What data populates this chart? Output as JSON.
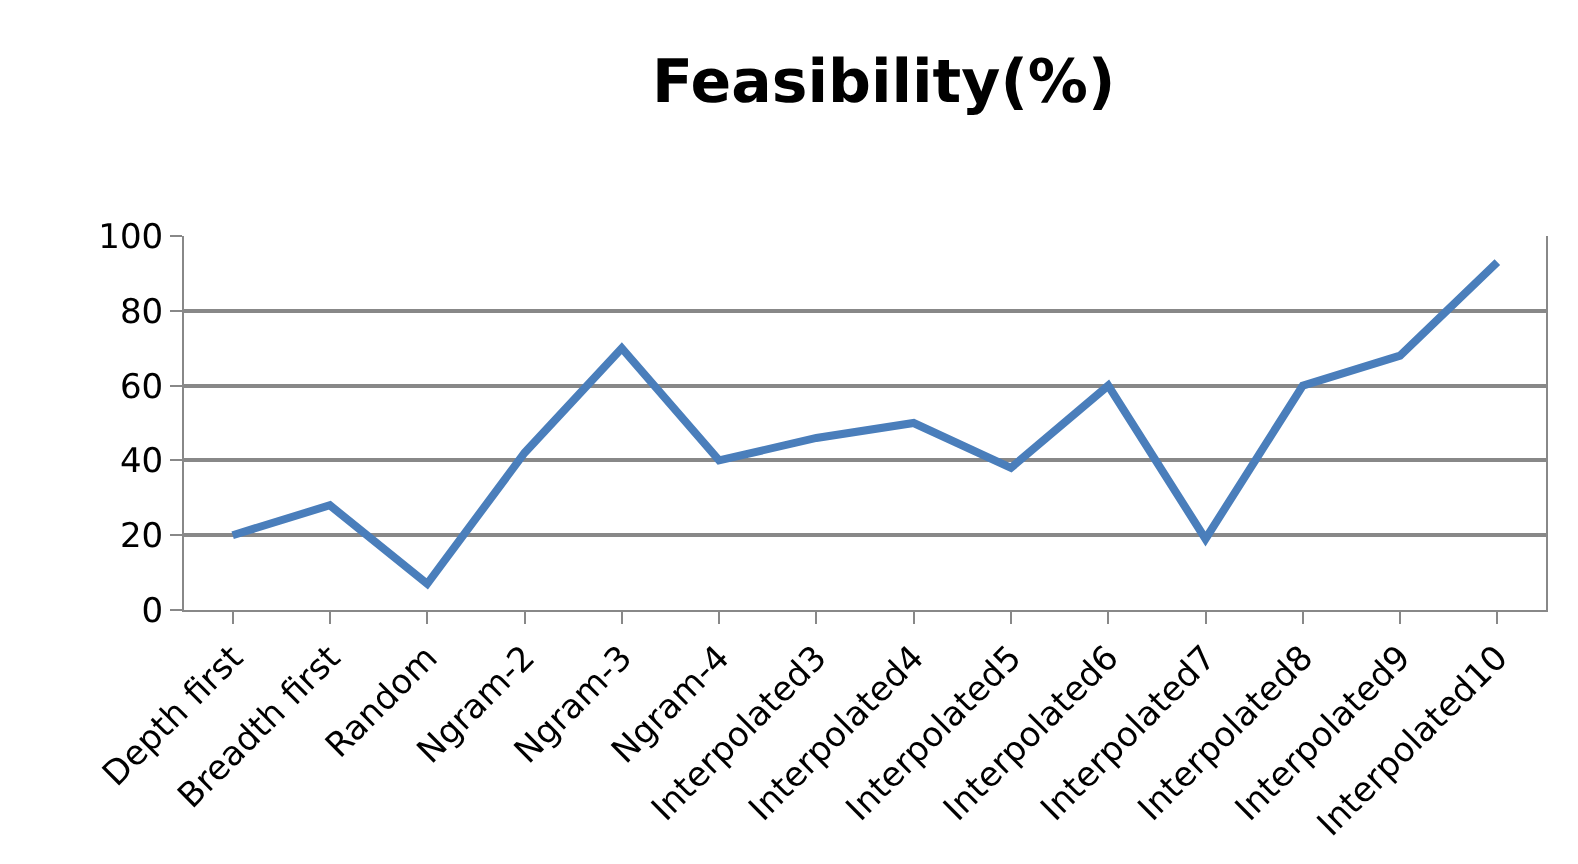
{
  "chart_data": {
    "type": "line",
    "title": "Feasibility(%)",
    "categories": [
      "Depth first",
      "Breadth first",
      "Random",
      "Ngram-2",
      "Ngram-3",
      "Ngram-4",
      "Interpolated3",
      "Interpolated4",
      "Interpolated5",
      "Interpolated6",
      "Interpolated7",
      "Interpolated8",
      "Interpolated9",
      "Interpolated10"
    ],
    "series": [
      {
        "color": "#4a7ebb",
        "values": [
          20,
          28,
          7,
          42,
          70,
          40,
          46,
          50,
          38,
          60,
          19,
          60,
          68,
          93
        ]
      }
    ],
    "ylim": [
      0,
      100
    ],
    "yticks": [
      0,
      20,
      40,
      60,
      80,
      100
    ],
    "grid": "y",
    "marker": "none",
    "line_style": "solid"
  }
}
